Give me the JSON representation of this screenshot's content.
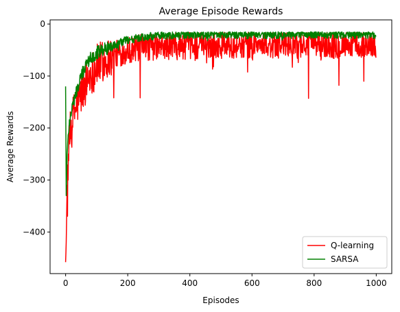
{
  "chart_data": {
    "type": "line",
    "title": "Average Episode Rewards",
    "xlabel": "Episodes",
    "ylabel": "Average Rewards",
    "xlim": [
      -50,
      1050
    ],
    "ylim": [
      -480,
      8
    ],
    "xticks": [
      0,
      200,
      400,
      600,
      800,
      1000
    ],
    "yticks": [
      0,
      -100,
      -200,
      -300,
      -400
    ],
    "xtick_labels": [
      "0",
      "200",
      "400",
      "600",
      "800",
      "1000"
    ],
    "ytick_labels": [
      "0",
      "−100",
      "−200",
      "−300",
      "−400"
    ],
    "grid": false,
    "legend_position": "lower-right",
    "x_range": [
      0,
      999
    ],
    "series": [
      {
        "name": "Q-learning",
        "color": "#ff0000",
        "key_points": [
          [
            0,
            -458
          ],
          [
            2,
            -420
          ],
          [
            5,
            -310
          ],
          [
            10,
            -240
          ],
          [
            15,
            -210
          ],
          [
            25,
            -175
          ],
          [
            40,
            -150
          ],
          [
            60,
            -120
          ],
          [
            80,
            -95
          ],
          [
            100,
            -80
          ],
          [
            150,
            -60
          ],
          [
            200,
            -50
          ],
          [
            250,
            -45
          ],
          [
            400,
            -42
          ],
          [
            600,
            -40
          ],
          [
            800,
            -40
          ],
          [
            999,
            -40
          ]
        ],
        "min_dip_points": [
          [
            782,
            -143
          ],
          [
            240,
            -142
          ],
          [
            155,
            -142
          ],
          [
            880,
            -118
          ],
          [
            960,
            -110
          ]
        ],
        "band_top": -16,
        "noise_amplitude": 26
      },
      {
        "name": "SARSA",
        "color": "#008000",
        "key_points": [
          [
            0,
            -120
          ],
          [
            2,
            -330
          ],
          [
            5,
            -250
          ],
          [
            10,
            -200
          ],
          [
            15,
            -175
          ],
          [
            25,
            -150
          ],
          [
            40,
            -120
          ],
          [
            60,
            -85
          ],
          [
            80,
            -65
          ],
          [
            100,
            -55
          ],
          [
            140,
            -45
          ],
          [
            200,
            -30
          ],
          [
            300,
            -22
          ],
          [
            400,
            -20
          ],
          [
            600,
            -20
          ],
          [
            800,
            -20
          ],
          [
            999,
            -20
          ]
        ],
        "band_top": -15,
        "noise_amplitude": 8
      }
    ]
  }
}
